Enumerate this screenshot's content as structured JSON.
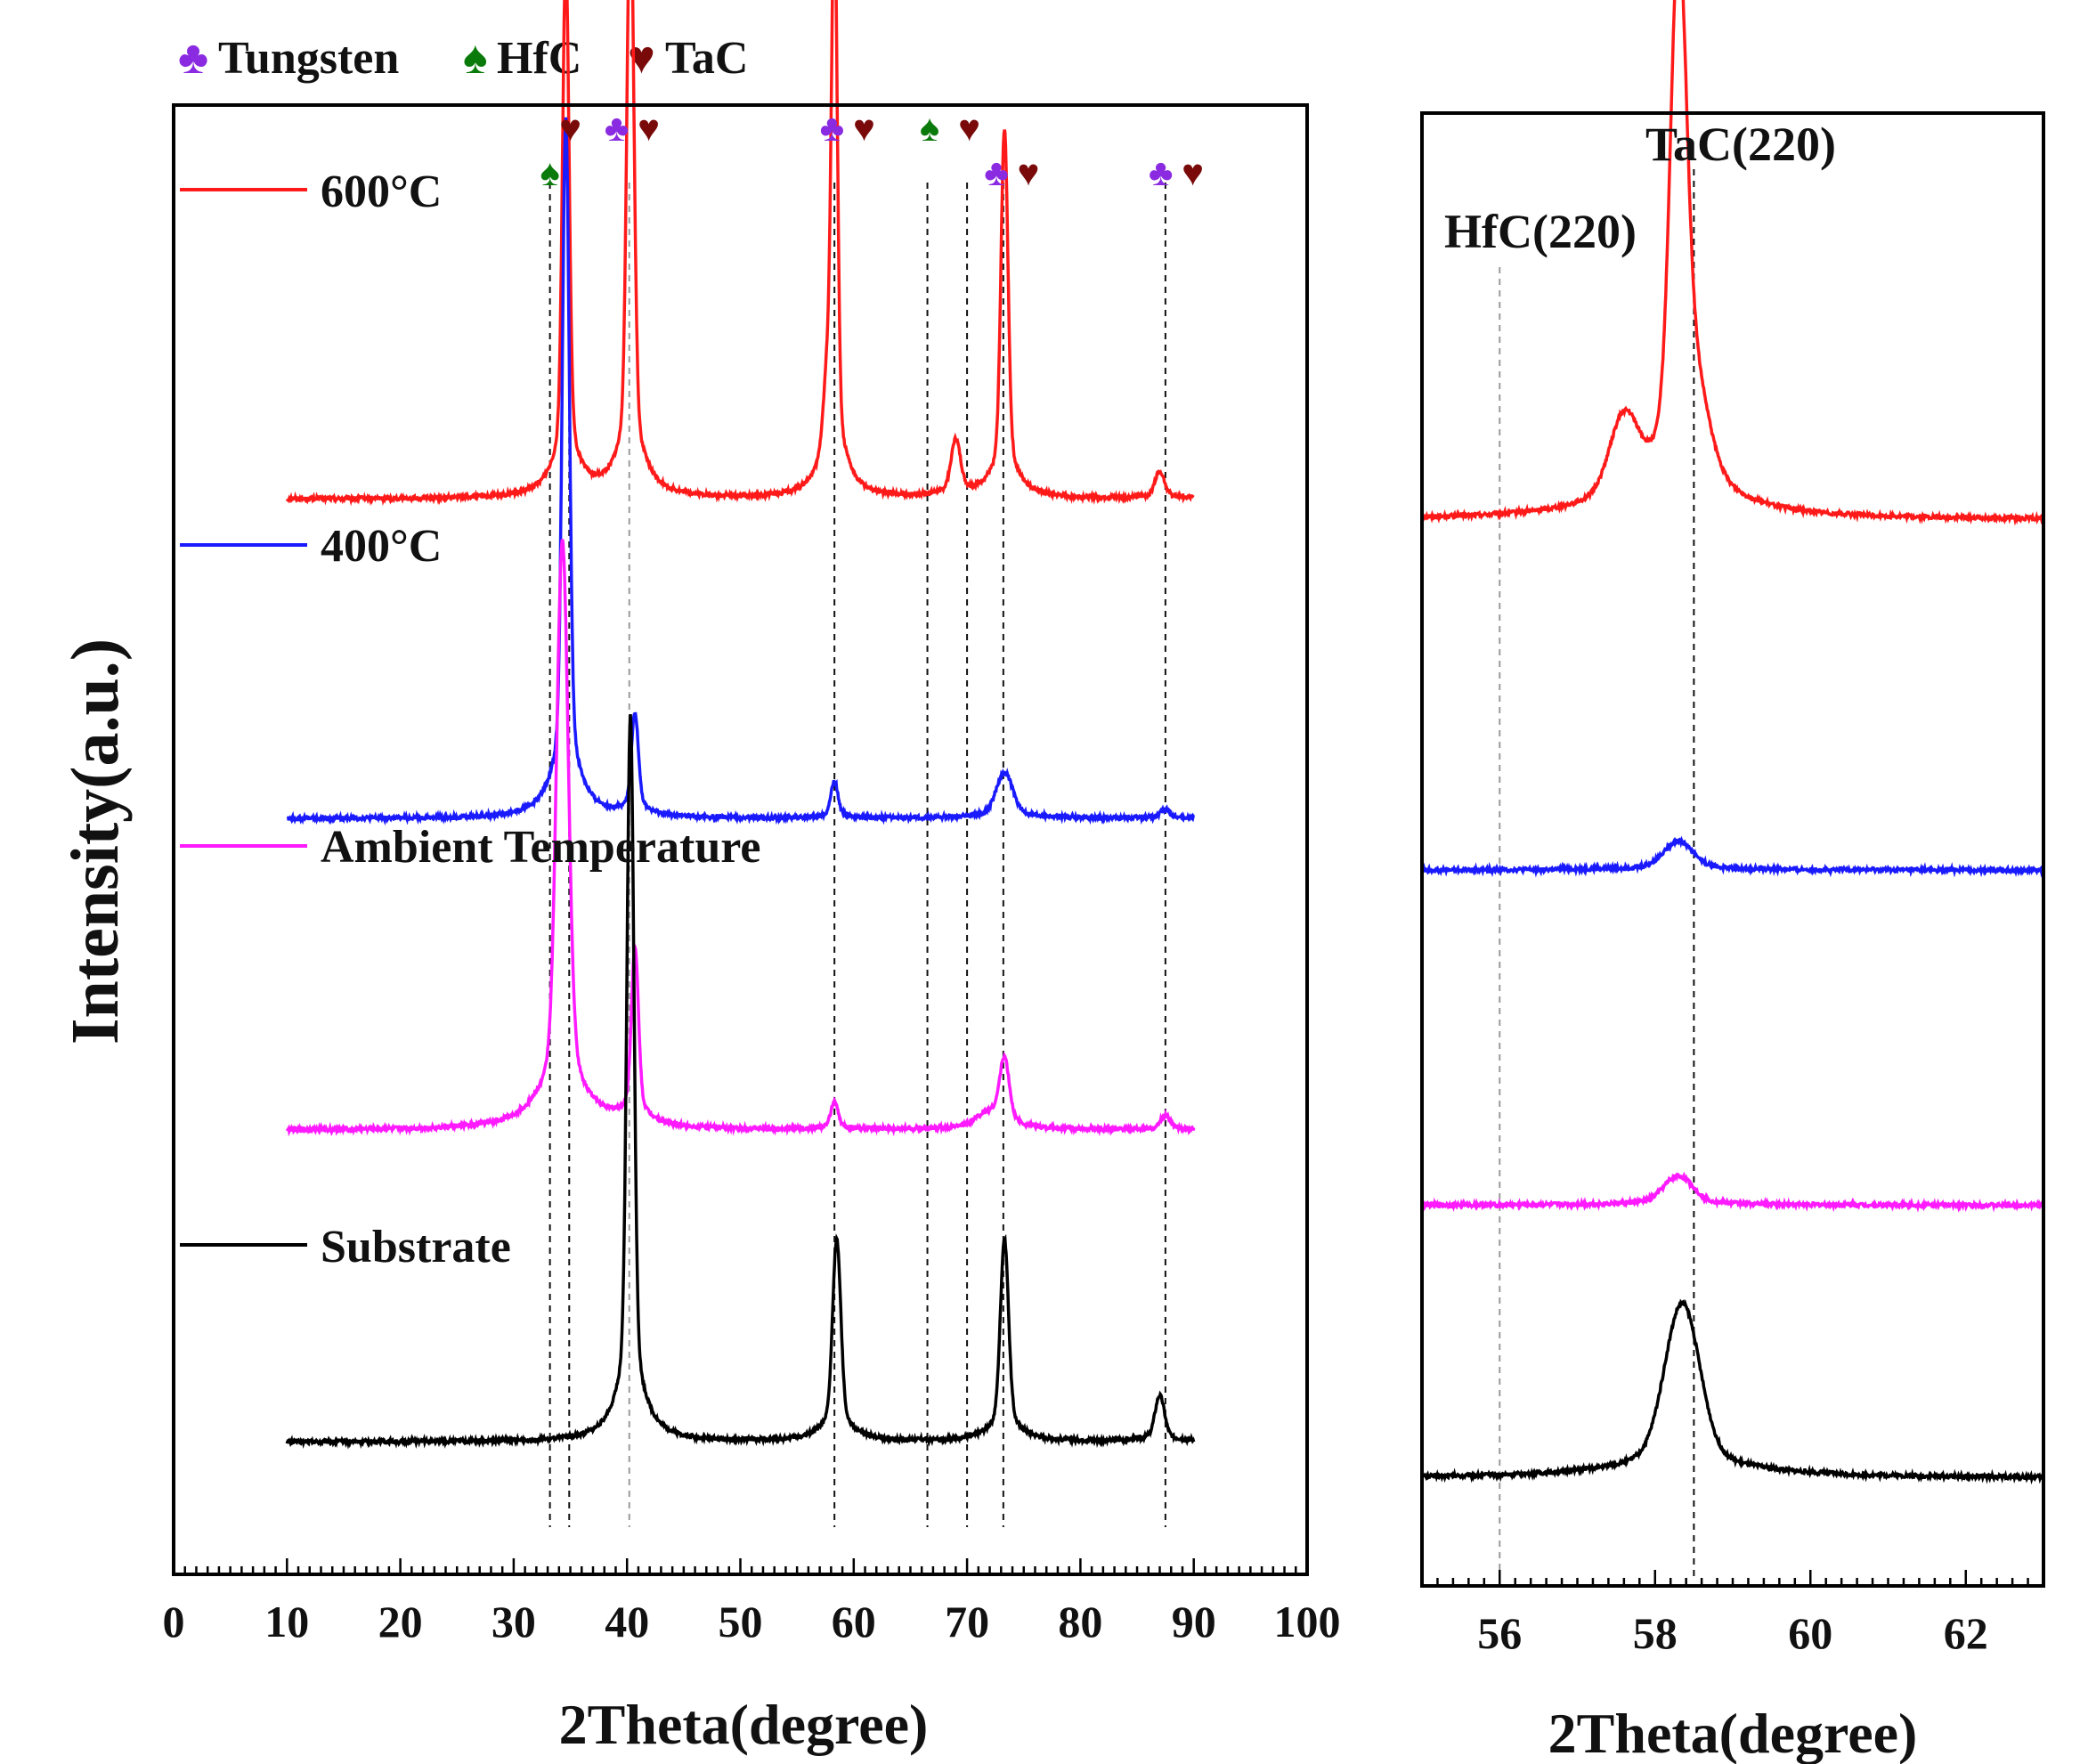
{
  "chart_data": [
    {
      "type": "line",
      "title": "",
      "xlabel": "2Theta(degree)",
      "ylabel": "Intensity(a.u.)",
      "xlim": [
        0,
        100
      ],
      "xticks": [
        "0",
        "10",
        "20",
        "30",
        "40",
        "50",
        "60",
        "70",
        "80",
        "90",
        "100"
      ],
      "legend_top": [
        {
          "symbol": "♣",
          "label": "Tungsten",
          "color": "#8a2be2"
        },
        {
          "symbol": "♠",
          "label": "HfC",
          "color": "#0a7a0a"
        },
        {
          "symbol": "♥",
          "label": "TaC",
          "color": "#7a0a0a"
        }
      ],
      "reference_lines": [
        {
          "x": 33.2,
          "style": "dark"
        },
        {
          "x": 34.9,
          "style": "dark"
        },
        {
          "x": 40.2,
          "style": "light"
        },
        {
          "x": 58.3,
          "style": "dark"
        },
        {
          "x": 66.5,
          "style": "dark"
        },
        {
          "x": 70.0,
          "style": "dark"
        },
        {
          "x": 73.2,
          "style": "dark"
        },
        {
          "x": 87.5,
          "style": "dark"
        }
      ],
      "phase_markers": [
        {
          "x": 33.2,
          "level": 2,
          "symbols": [
            "♠"
          ]
        },
        {
          "x": 35.0,
          "level": 1,
          "symbols": [
            "♥"
          ]
        },
        {
          "x": 40.5,
          "level": 1,
          "symbols": [
            "♣",
            "♥"
          ]
        },
        {
          "x": 59.5,
          "level": 1,
          "symbols": [
            "♣",
            "♥"
          ]
        },
        {
          "x": 66.7,
          "level": 1,
          "symbols": [
            "♠"
          ]
        },
        {
          "x": 70.2,
          "level": 1,
          "symbols": [
            "♥"
          ]
        },
        {
          "x": 74.0,
          "level": 2,
          "symbols": [
            "♣",
            "♥"
          ]
        },
        {
          "x": 88.5,
          "level": 2,
          "symbols": [
            "♣",
            "♥"
          ]
        }
      ],
      "series": [
        {
          "name": "600°C",
          "color": "#ff1a1a",
          "baseline": 6.5,
          "peaks": [
            {
              "x": 34.6,
              "height": 2.9,
              "width": 0.28
            },
            {
              "x": 40.3,
              "height": 3.3,
              "width": 0.3
            },
            {
              "x": 58.3,
              "height": 3.1,
              "width": 0.25
            },
            {
              "x": 57.7,
              "height": 0.45,
              "width": 0.35
            },
            {
              "x": 69.0,
              "height": 0.3,
              "width": 0.4
            },
            {
              "x": 73.3,
              "height": 2.0,
              "width": 0.3
            },
            {
              "x": 87.0,
              "height": 0.15,
              "width": 0.4
            }
          ]
        },
        {
          "name": "400°C",
          "color": "#1a1aff",
          "baseline": 4.45,
          "peaks": [
            {
              "x": 34.6,
              "height": 3.8,
              "width": 0.3
            },
            {
              "x": 40.7,
              "height": 0.55,
              "width": 0.3
            },
            {
              "x": 58.3,
              "height": 0.2,
              "width": 0.3
            },
            {
              "x": 73.3,
              "height": 0.25,
              "width": 0.7
            },
            {
              "x": 87.5,
              "height": 0.05,
              "width": 0.4
            }
          ]
        },
        {
          "name": "Ambient Temperature",
          "color": "#ff1aff",
          "baseline": 2.45,
          "peaks": [
            {
              "x": 34.3,
              "height": 3.2,
              "width": 0.5
            },
            {
              "x": 40.7,
              "height": 0.95,
              "width": 0.3
            },
            {
              "x": 58.3,
              "height": 0.15,
              "width": 0.3
            },
            {
              "x": 72.0,
              "height": 0.08,
              "width": 1.2
            },
            {
              "x": 73.3,
              "height": 0.35,
              "width": 0.4
            },
            {
              "x": 87.5,
              "height": 0.08,
              "width": 0.4
            }
          ]
        },
        {
          "name": "Substrate",
          "color": "#000000",
          "baseline": 0.45,
          "peaks": [
            {
              "x": 40.3,
              "height": 3.95,
              "width": 0.3
            },
            {
              "x": 58.5,
              "height": 1.1,
              "width": 0.35
            },
            {
              "x": 73.3,
              "height": 1.1,
              "width": 0.35
            },
            {
              "x": 87.0,
              "height": 0.25,
              "width": 0.4
            }
          ]
        }
      ]
    },
    {
      "type": "line",
      "title": "",
      "xlabel": "2Theta(degree)",
      "ylabel": "",
      "xlim": [
        55,
        63
      ],
      "xticks": [
        "56",
        "58",
        "60",
        "62"
      ],
      "annotations": [
        {
          "text": "TaC(220)",
          "x": 58.5,
          "style": "dark"
        },
        {
          "text": "HfC(220)",
          "x": 56.0,
          "style": "light"
        }
      ],
      "series": [
        {
          "name": "600°C",
          "color": "#ff1a1a",
          "baseline": 6.5,
          "peaks": [
            {
              "x": 58.3,
              "height": 2.65,
              "width": 0.1
            },
            {
              "x": 58.45,
              "height": 0.6,
              "width": 0.2
            },
            {
              "x": 57.6,
              "height": 0.45,
              "width": 0.18
            }
          ]
        },
        {
          "name": "400°C",
          "color": "#1a1aff",
          "baseline": 4.25,
          "peaks": [
            {
              "x": 58.3,
              "height": 0.16,
              "width": 0.18
            }
          ]
        },
        {
          "name": "Ambient Temperature",
          "color": "#ff1aff",
          "baseline": 2.1,
          "peaks": [
            {
              "x": 58.3,
              "height": 0.16,
              "width": 0.18
            }
          ]
        },
        {
          "name": "Substrate",
          "color": "#000000",
          "baseline": 0.35,
          "peaks": [
            {
              "x": 58.35,
              "height": 0.95,
              "width": 0.22
            }
          ]
        }
      ]
    }
  ]
}
